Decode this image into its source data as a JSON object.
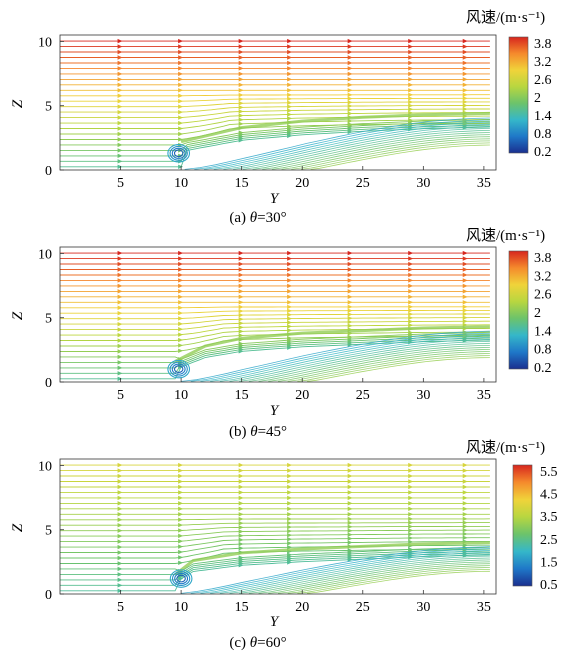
{
  "figure": {
    "colorbar_title": "风速/(m·s⁻¹)",
    "x_axis_label": "Y",
    "y_axis_label": "Z",
    "x_ticks": [
      5,
      10,
      15,
      20,
      25,
      30,
      35
    ],
    "y_ticks": [
      0,
      5,
      10
    ]
  },
  "chart_data": [
    {
      "type": "streamline",
      "caption": "(a) θ=30°",
      "caption_prefix": "(a) ",
      "caption_var": "θ",
      "caption_suffix": "=30°",
      "xlabel": "Y",
      "ylabel": "Z",
      "xlim": [
        0,
        36
      ],
      "ylim": [
        0,
        10.5
      ],
      "colorbar": {
        "ticks": [
          "3.8",
          "3.2",
          "2.6",
          "2",
          "1.4",
          "0.8",
          "0.2"
        ],
        "range": [
          0.2,
          4.1
        ]
      },
      "shear_layer": [
        [
          10,
          2.2
        ],
        [
          15,
          3.3
        ],
        [
          20,
          3.8
        ],
        [
          25,
          4.1
        ],
        [
          30,
          4.3
        ],
        [
          35.5,
          4.4
        ]
      ],
      "obstacle_at_y": 9.8,
      "vortex_center": [
        9.8,
        1.3
      ]
    },
    {
      "type": "streamline",
      "caption": "(b) θ=45°",
      "caption_prefix": "(b) ",
      "caption_var": "θ",
      "caption_suffix": "=45°",
      "xlabel": "Y",
      "ylabel": "Z",
      "xlim": [
        0,
        36
      ],
      "ylim": [
        0,
        10.5
      ],
      "colorbar": {
        "ticks": [
          "3.8",
          "3.2",
          "2.6",
          "2",
          "1.4",
          "0.8",
          "0.2"
        ],
        "range": [
          0.2,
          4.1
        ]
      },
      "shear_layer": [
        [
          9.5,
          1.6
        ],
        [
          12,
          2.8
        ],
        [
          15,
          3.4
        ],
        [
          20,
          3.8
        ],
        [
          25,
          4.0
        ],
        [
          30,
          4.2
        ],
        [
          35.5,
          4.3
        ]
      ],
      "obstacle_at_y": 9.5,
      "vortex_center": [
        9.8,
        1.0
      ]
    },
    {
      "type": "streamline",
      "caption": "(c) θ=60°",
      "caption_prefix": "(c) ",
      "caption_var": "θ",
      "caption_suffix": "=60°",
      "xlabel": "Y",
      "ylabel": "Z",
      "xlim": [
        0,
        36
      ],
      "ylim": [
        0,
        10.5
      ],
      "colorbar": {
        "ticks": [
          "5.5",
          "4.5",
          "3.5",
          "2.5",
          "1.5",
          "0.5"
        ],
        "range": [
          0.5,
          5.9
        ]
      },
      "shear_layer": [
        [
          9.5,
          1.5
        ],
        [
          11,
          2.6
        ],
        [
          15,
          3.2
        ],
        [
          20,
          3.5
        ],
        [
          25,
          3.7
        ],
        [
          30,
          3.9
        ],
        [
          35.5,
          4.0
        ]
      ],
      "obstacle_at_y": 9.5,
      "vortex_center": [
        10.0,
        1.2
      ]
    }
  ],
  "colors": {
    "speed_scale": [
      "#1a2f8f",
      "#1f78c8",
      "#35b7c9",
      "#6cc36b",
      "#b8d640",
      "#f0d33a",
      "#f58a2c",
      "#d7261e"
    ]
  }
}
